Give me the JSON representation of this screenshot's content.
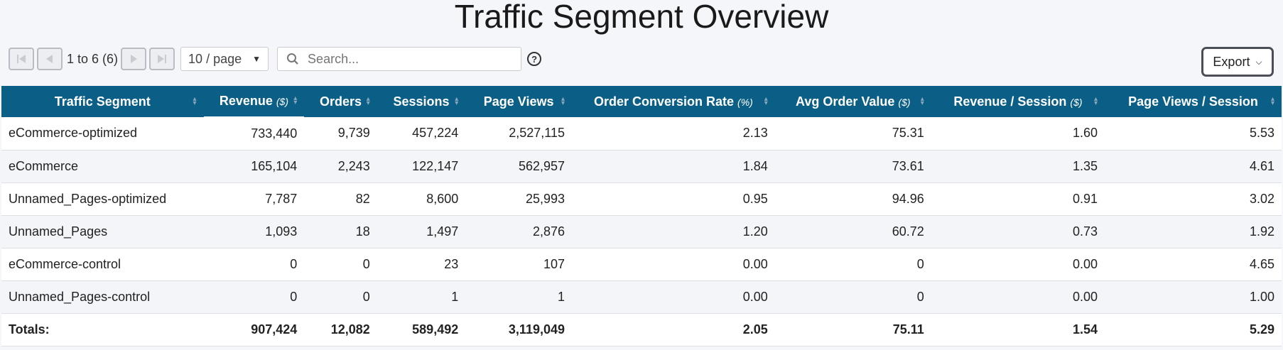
{
  "title": "Traffic Segment Overview",
  "pager": {
    "range_text": "1 to 6 (6)",
    "page_size": "10 / page"
  },
  "search": {
    "placeholder": "Search..."
  },
  "help_label": "?",
  "export_label": "Export",
  "columns": [
    {
      "label": "Traffic Segment",
      "unit": ""
    },
    {
      "label": "Revenue",
      "unit": "($)"
    },
    {
      "label": "Orders",
      "unit": ""
    },
    {
      "label": "Sessions",
      "unit": ""
    },
    {
      "label": "Page Views",
      "unit": ""
    },
    {
      "label": "Order Conversion Rate",
      "unit": "(%)"
    },
    {
      "label": "Avg Order Value",
      "unit": "($)"
    },
    {
      "label": "Revenue / Session",
      "unit": "($)"
    },
    {
      "label": "Page Views / Session",
      "unit": ""
    }
  ],
  "rows": [
    [
      "eCommerce-optimized",
      "733,440",
      "9,739",
      "457,224",
      "2,527,115",
      "2.13",
      "75.31",
      "1.60",
      "5.53"
    ],
    [
      "eCommerce",
      "165,104",
      "2,243",
      "122,147",
      "562,957",
      "1.84",
      "73.61",
      "1.35",
      "4.61"
    ],
    [
      "Unnamed_Pages-optimized",
      "7,787",
      "82",
      "8,600",
      "25,993",
      "0.95",
      "94.96",
      "0.91",
      "3.02"
    ],
    [
      "Unnamed_Pages",
      "1,093",
      "18",
      "1,497",
      "2,876",
      "1.20",
      "60.72",
      "0.73",
      "1.92"
    ],
    [
      "eCommerce-control",
      "0",
      "0",
      "23",
      "107",
      "0.00",
      "0",
      "0.00",
      "4.65"
    ],
    [
      "Unnamed_Pages-control",
      "0",
      "0",
      "1",
      "1",
      "0.00",
      "0",
      "0.00",
      "1.00"
    ]
  ],
  "totals": [
    "Totals:",
    "907,424",
    "12,082",
    "589,492",
    "3,119,049",
    "2.05",
    "75.11",
    "1.54",
    "5.29"
  ]
}
